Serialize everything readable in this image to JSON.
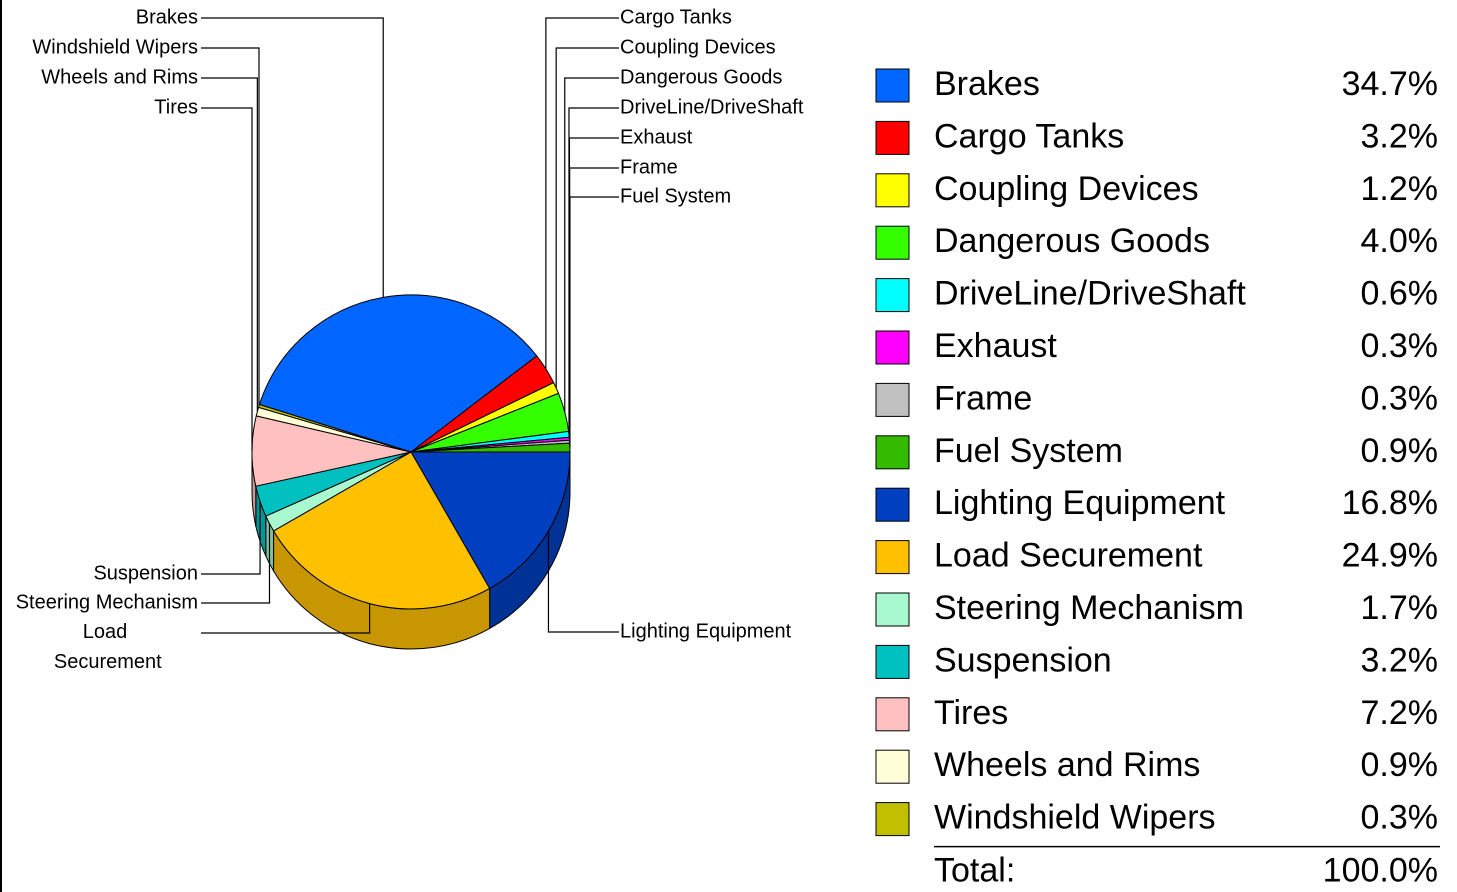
{
  "chart_data": {
    "type": "pie",
    "categories": [
      "Brakes",
      "Cargo Tanks",
      "Coupling Devices",
      "Dangerous Goods",
      "DriveLine/DriveShaft",
      "Exhaust",
      "Frame",
      "Fuel System",
      "Lighting Equipment",
      "Load Securement",
      "Steering Mechanism",
      "Suspension",
      "Tires",
      "Wheels and Rims",
      "Windshield Wipers"
    ],
    "values": [
      34.7,
      3.2,
      1.2,
      4.0,
      0.6,
      0.3,
      0.3,
      0.9,
      16.8,
      24.9,
      1.7,
      3.2,
      7.2,
      0.9,
      0.3
    ],
    "value_labels": [
      "34.7%",
      "3.2%",
      "1.2%",
      "4.0%",
      "0.6%",
      "0.3%",
      "0.3%",
      "0.9%",
      "16.8%",
      "24.9%",
      "1.7%",
      "3.2%",
      "7.2%",
      "0.9%",
      "0.3%"
    ],
    "colors": [
      "#0066ff",
      "#ff0000",
      "#ffff00",
      "#33ff00",
      "#00ffff",
      "#ff00ff",
      "#c0c0c0",
      "#33bb00",
      "#0040c0",
      "#ffc000",
      "#a8f8d0",
      "#00c0c0",
      "#ffc0c0",
      "#ffffd8",
      "#c0c000"
    ],
    "total_label": "Total:",
    "total_value_label": "100.0%"
  }
}
